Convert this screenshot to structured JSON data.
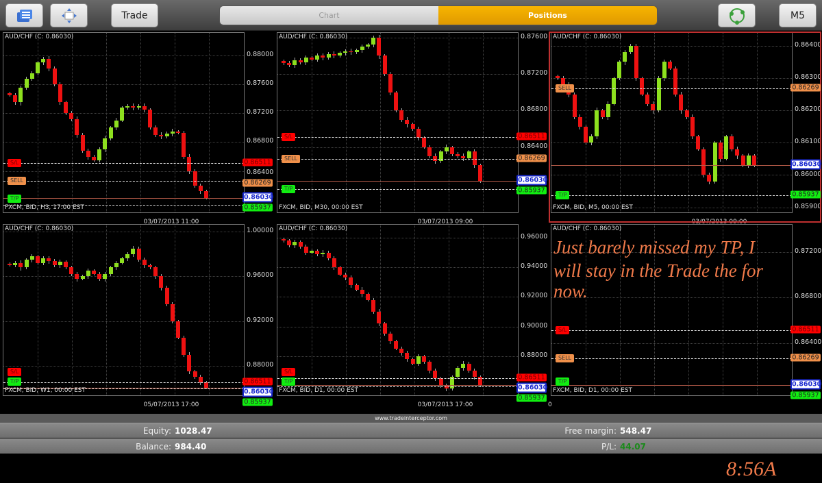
{
  "toolbar": {
    "trade_label": "Trade",
    "tabs": [
      {
        "label": "Chart",
        "active": false
      },
      {
        "label": "Positions",
        "active": true
      }
    ],
    "timeframe_label": "M5",
    "icons": [
      "messages-icon",
      "move-icon",
      "refresh-icon"
    ]
  },
  "colors": {
    "bull": "#8de01e",
    "bear": "#ee1111",
    "sl": "#ff0000",
    "sell": "#f0904a",
    "tp": "#11ee11",
    "price": "#1a2ad0",
    "accent": "#f0a800"
  },
  "panels": [
    {
      "title": "AUD/CHF (C: 0.86030)",
      "footer": "FXCM, BID, H3, 17:00 EST",
      "date": "03/07/2013 11:00",
      "ylim": [
        0.8581,
        0.8831
      ],
      "ticks": [
        "0.88000",
        "0.87600",
        "0.87200",
        "0.86800",
        "0.86400"
      ],
      "levels": [
        {
          "tag": "S/L",
          "value": "0.86511",
          "type": "sl"
        },
        {
          "tag": "SELL",
          "value": "0.86269",
          "type": "sell"
        },
        {
          "tag": "T/P",
          "value": "0.85937",
          "type": "tp"
        }
      ],
      "price": "0.86030",
      "closes": [
        0.8745,
        0.8735,
        0.8755,
        0.8768,
        0.8775,
        0.879,
        0.8795,
        0.8782,
        0.876,
        0.8735,
        0.872,
        0.8712,
        0.869,
        0.8668,
        0.866,
        0.8655,
        0.867,
        0.8685,
        0.87,
        0.871,
        0.8728,
        0.873,
        0.8728,
        0.873,
        0.8725,
        0.87,
        0.869,
        0.8688,
        0.8692,
        0.8695,
        0.8693,
        0.866,
        0.864,
        0.862,
        0.8612,
        0.8603
      ]
    },
    {
      "title": "AUD/CHF (C: 0.86030)",
      "footer": "FXCM, BID, M30, 00:00 EST",
      "date": "03/07/2013 09:00",
      "ylim": [
        0.8567,
        0.8765
      ],
      "ticks": [
        "0.87600",
        "0.87200",
        "0.86800",
        "0.86400"
      ],
      "levels": [
        {
          "tag": "S/L",
          "value": "0.86511",
          "type": "sl"
        },
        {
          "tag": "SELL",
          "value": "0.86269",
          "type": "sell"
        },
        {
          "tag": "T/P",
          "value": "0.85937",
          "type": "tp"
        }
      ],
      "price": "0.86030",
      "closes": [
        0.8732,
        0.873,
        0.8735,
        0.8733,
        0.8738,
        0.8736,
        0.874,
        0.8738,
        0.8742,
        0.874,
        0.8743,
        0.8745,
        0.8744,
        0.8746,
        0.875,
        0.8752,
        0.876,
        0.874,
        0.872,
        0.87,
        0.868,
        0.867,
        0.8665,
        0.866,
        0.865,
        0.864,
        0.863,
        0.8625,
        0.8635,
        0.864,
        0.8632,
        0.863,
        0.8628,
        0.8635,
        0.862,
        0.8603
      ]
    },
    {
      "title": "AUD/CHF (C: 0.86030)",
      "footer": "FXCM, BID, M5, 00:00 EST",
      "date": "03/07/2013 09:00",
      "ylim": [
        0.8588,
        0.8644
      ],
      "selected": true,
      "ticks": [
        "0.86400",
        "0.86300",
        "0.86200",
        "0.86100",
        "0.86000",
        "0.85900"
      ],
      "levels": [
        {
          "tag": "SELL",
          "value": "0.86269",
          "type": "sell"
        },
        {
          "tag": "T/P",
          "value": "0.85937",
          "type": "tp"
        }
      ],
      "price": "0.86030",
      "closes": [
        0.863,
        0.8628,
        0.8625,
        0.8618,
        0.8615,
        0.861,
        0.8612,
        0.862,
        0.8618,
        0.8622,
        0.863,
        0.8635,
        0.8638,
        0.864,
        0.863,
        0.8625,
        0.8622,
        0.862,
        0.863,
        0.8635,
        0.8633,
        0.8625,
        0.862,
        0.8618,
        0.8612,
        0.8608,
        0.86,
        0.8598,
        0.861,
        0.8605,
        0.8612,
        0.8608,
        0.8606,
        0.8603,
        0.8606,
        0.8603
      ]
    },
    {
      "title": "AUD/CHF (C: 0.86030)",
      "footer": "FXCM, BID, W1, 00:00 EST",
      "date": "05/07/2013 17:00",
      "ylim": [
        0.8523,
        1.0062
      ],
      "ticks": [
        "1.00000",
        "0.96000",
        "0.92000",
        "0.88000"
      ],
      "levels": [
        {
          "tag": "S/L",
          "value": "0.86511",
          "type": "sl"
        },
        {
          "tag": "T/P",
          "value": "0.85937",
          "type": "tp"
        }
      ],
      "price": "0.86030",
      "closes": [
        0.97,
        0.972,
        0.968,
        0.975,
        0.978,
        0.972,
        0.976,
        0.974,
        0.97,
        0.973,
        0.968,
        0.962,
        0.958,
        0.96,
        0.965,
        0.962,
        0.958,
        0.962,
        0.968,
        0.972,
        0.976,
        0.98,
        0.985,
        0.975,
        0.97,
        0.968,
        0.96,
        0.95,
        0.935,
        0.92,
        0.905,
        0.89,
        0.875,
        0.87,
        0.865,
        0.8603
      ]
    },
    {
      "title": "AUD/CHF (C: 0.86030)",
      "footer": "FXCM, BID, D1, 00:00 EST",
      "date": "03/07/2013 17:00",
      "ylim": [
        0.8526,
        0.9688
      ],
      "ticks": [
        "0.96000",
        "0.94000",
        "0.92000",
        "0.90000",
        "0.88000"
      ],
      "levels": [
        {
          "tag": "S/L",
          "value": "0.86511",
          "type": "sl"
        },
        {
          "tag": "T/P",
          "value": "0.85937",
          "type": "tp"
        }
      ],
      "price": "0.86030",
      "closes": [
        0.958,
        0.955,
        0.957,
        0.954,
        0.95,
        0.951,
        0.949,
        0.95,
        0.946,
        0.94,
        0.935,
        0.933,
        0.928,
        0.925,
        0.922,
        0.918,
        0.91,
        0.902,
        0.895,
        0.89,
        0.885,
        0.882,
        0.878,
        0.875,
        0.88,
        0.876,
        0.87,
        0.865,
        0.86,
        0.858,
        0.866,
        0.872,
        0.875,
        0.87,
        0.866,
        0.8603
      ]
    },
    {
      "title": "AUD/CHF (C: 0.86030)",
      "footer": "FXCM, BID, D1, 00:00 EST",
      "date": "0",
      "ylim": [
        0.8593,
        0.8744
      ],
      "ticks": [
        "0.87200",
        "0.86800",
        "0.86400"
      ],
      "levels": [
        {
          "tag": "S/L",
          "value": "0.86511",
          "type": "sl"
        },
        {
          "tag": "SELL",
          "value": "0.86269",
          "type": "sell"
        },
        {
          "tag": "T/P",
          "value": "0.85937",
          "type": "tp"
        }
      ],
      "price": "0.86030",
      "closes": []
    }
  ],
  "annotation": {
    "line1": "Just barely missed my TP, I",
    "line2": "will stay in the Trade the for now.",
    "time": "8:56A"
  },
  "footer": {
    "site": "www.tradeinterceptor.com",
    "equity_label": "Equity:",
    "equity": "1028.47",
    "free_margin_label": "Free margin:",
    "free_margin": "548.47",
    "balance_label": "Balance:",
    "balance": "984.40",
    "pl_label": "P/L:",
    "pl": "44.07",
    "pl_color": "#1a8a1a"
  }
}
